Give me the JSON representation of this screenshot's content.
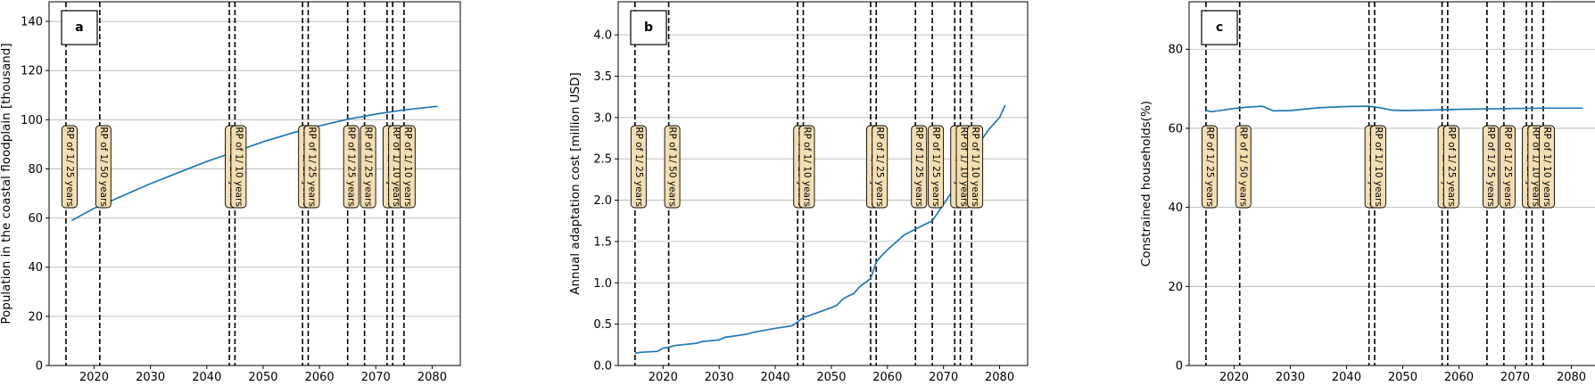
{
  "chart_data": [
    {
      "type": "line",
      "panel_label": "a",
      "ylabel": "Population in the coastal floodplain [thousand]",
      "xlabel": "",
      "xlim": [
        2012,
        2085
      ],
      "ylim": [
        0,
        148
      ],
      "xticks": [
        2020,
        2030,
        2040,
        2050,
        2060,
        2070,
        2080
      ],
      "yticks": [
        0,
        20,
        40,
        60,
        80,
        100,
        120,
        140
      ],
      "ytick_labels": [
        "0",
        "20",
        "40",
        "60",
        "80",
        "100",
        "120",
        "140"
      ],
      "grid": "horizontal",
      "series": [
        {
          "color": "#1f77b4",
          "x": [
            2016,
            2020,
            2025,
            2030,
            2035,
            2040,
            2045,
            2050,
            2055,
            2060,
            2065,
            2070,
            2075,
            2081
          ],
          "values": [
            59,
            64,
            69,
            74,
            78.5,
            83,
            87,
            91,
            94.5,
            97.5,
            100.2,
            102.3,
            104,
            105.5
          ]
        }
      ],
      "events": [
        {
          "year": 2015,
          "label": "RP of 1/ 25 years"
        },
        {
          "year": 2021,
          "label": "RP of 1/ 50 years"
        },
        {
          "year": 2044,
          "label": "RP of 1/ 10 years"
        },
        {
          "year": 2045,
          "label": "RP of 1/ 10 years"
        },
        {
          "year": 2057,
          "label": "RP of 1/ 25 years"
        },
        {
          "year": 2058,
          "label": "RP of 1/ 25 years"
        },
        {
          "year": 2065,
          "label": "RP of 1/ 25 years"
        },
        {
          "year": 2068,
          "label": "RP of 1/ 25 years"
        },
        {
          "year": 2072,
          "label": "RP of 1/ 25 years"
        },
        {
          "year": 2073,
          "label": "RP of 1/ 10 years"
        },
        {
          "year": 2075,
          "label": "RP of 1/ 10 years"
        }
      ]
    },
    {
      "type": "line",
      "panel_label": "b",
      "ylabel": "Annual adaptation cost [million USD]",
      "xlabel": "",
      "xlim": [
        2012,
        2085
      ],
      "ylim": [
        0,
        4.4
      ],
      "xticks": [
        2020,
        2030,
        2040,
        2050,
        2060,
        2070,
        2080
      ],
      "yticks": [
        0,
        0.5,
        1.0,
        1.5,
        2.0,
        2.5,
        3.0,
        3.5,
        4.0
      ],
      "ytick_labels": [
        "0.0",
        "0.5",
        "1.0",
        "1.5",
        "2.0",
        "2.5",
        "3.0",
        "3.5",
        "4.0"
      ],
      "grid": "horizontal",
      "series": [
        {
          "color": "#1f77b4",
          "x": [
            2015,
            2016,
            2019,
            2020,
            2021,
            2022,
            2026,
            2027,
            2030,
            2031,
            2035,
            2036,
            2040,
            2043,
            2044,
            2045,
            2048,
            2050,
            2051,
            2052,
            2053,
            2054,
            2055,
            2057,
            2058,
            2059,
            2060,
            2063,
            2065,
            2068,
            2070,
            2072,
            2074,
            2076,
            2078,
            2080,
            2081
          ],
          "values": [
            0.15,
            0.16,
            0.17,
            0.21,
            0.22,
            0.24,
            0.27,
            0.29,
            0.31,
            0.34,
            0.38,
            0.4,
            0.45,
            0.48,
            0.53,
            0.58,
            0.65,
            0.7,
            0.73,
            0.8,
            0.84,
            0.87,
            0.95,
            1.05,
            1.25,
            1.33,
            1.4,
            1.58,
            1.65,
            1.75,
            1.95,
            2.15,
            2.4,
            2.65,
            2.85,
            3.0,
            3.15
          ]
        }
      ],
      "events": [
        {
          "year": 2015,
          "label": "RP of 1/ 25 years"
        },
        {
          "year": 2021,
          "label": "RP of 1/ 50 years"
        },
        {
          "year": 2044,
          "label": "RP of 1/ 10 years"
        },
        {
          "year": 2045,
          "label": "RP of 1/ 10 years"
        },
        {
          "year": 2057,
          "label": "RP of 1/ 25 years"
        },
        {
          "year": 2058,
          "label": "RP of 1/ 25 years"
        },
        {
          "year": 2065,
          "label": "RP of 1/ 25 years"
        },
        {
          "year": 2068,
          "label": "RP of 1/ 25 years"
        },
        {
          "year": 2072,
          "label": "RP of 1/ 25 years"
        },
        {
          "year": 2073,
          "label": "RP of 1/ 10 years"
        },
        {
          "year": 2075,
          "label": "RP of 1/ 10 years"
        }
      ]
    },
    {
      "type": "line",
      "panel_label": "c",
      "ylabel": "Constrained households(%)",
      "xlabel": "",
      "xlim": [
        2012,
        2085
      ],
      "ylim": [
        0,
        92
      ],
      "xticks": [
        2020,
        2030,
        2040,
        2050,
        2060,
        2070,
        2080
      ],
      "yticks": [
        0,
        20,
        40,
        60,
        80
      ],
      "ytick_labels": [
        "0",
        "20",
        "40",
        "60",
        "80"
      ],
      "grid": "horizontal",
      "series": [
        {
          "color": "#1f77b4",
          "x": [
            2015,
            2016,
            2020,
            2022,
            2025,
            2026,
            2027,
            2030,
            2035,
            2040,
            2044,
            2046,
            2047,
            2048,
            2050,
            2055,
            2060,
            2065,
            2070,
            2075,
            2082
          ],
          "values": [
            64.5,
            64.2,
            65.0,
            65.3,
            65.6,
            65.0,
            64.4,
            64.5,
            65.2,
            65.5,
            65.6,
            65.2,
            64.9,
            64.6,
            64.5,
            64.6,
            64.8,
            64.9,
            65.0,
            65.1,
            65.1
          ]
        }
      ],
      "events": [
        {
          "year": 2015,
          "label": "RP of 1/ 25 years"
        },
        {
          "year": 2021,
          "label": "RP of 1/ 50 years"
        },
        {
          "year": 2044,
          "label": "RP of 1/ 10 years"
        },
        {
          "year": 2045,
          "label": "RP of 1/ 10 years"
        },
        {
          "year": 2057,
          "label": "RP of 1/ 25 years"
        },
        {
          "year": 2058,
          "label": "RP of 1/ 25 years"
        },
        {
          "year": 2065,
          "label": "RP of 1/ 25 years"
        },
        {
          "year": 2068,
          "label": "RP of 1/ 25 years"
        },
        {
          "year": 2072,
          "label": "RP of 1/ 25 years"
        },
        {
          "year": 2073,
          "label": "RP of 1/ 10 years"
        },
        {
          "year": 2075,
          "label": "RP of 1/ 10 years"
        }
      ]
    }
  ]
}
